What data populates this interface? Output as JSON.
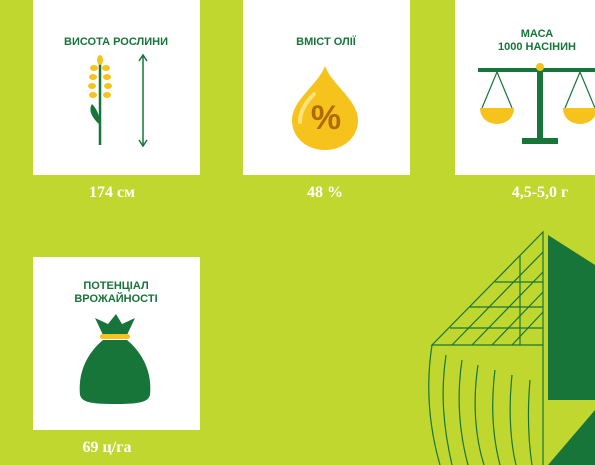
{
  "cards": [
    {
      "title_lines": [
        "ВИСОТА РОСЛИНИ"
      ],
      "value": "174 см"
    },
    {
      "title_lines": [
        "ВМІСТ ОЛІЇ"
      ],
      "icon_text": "%",
      "value": "48 %"
    },
    {
      "title_lines": [
        "МАСА",
        "1000 НАСІНИН"
      ],
      "value": "4,5-5,0 г"
    },
    {
      "title_lines": [
        "ПОТЕНЦІАЛ",
        "ВРОЖАЙНОСТІ"
      ],
      "value": "69 ц/га"
    }
  ]
}
